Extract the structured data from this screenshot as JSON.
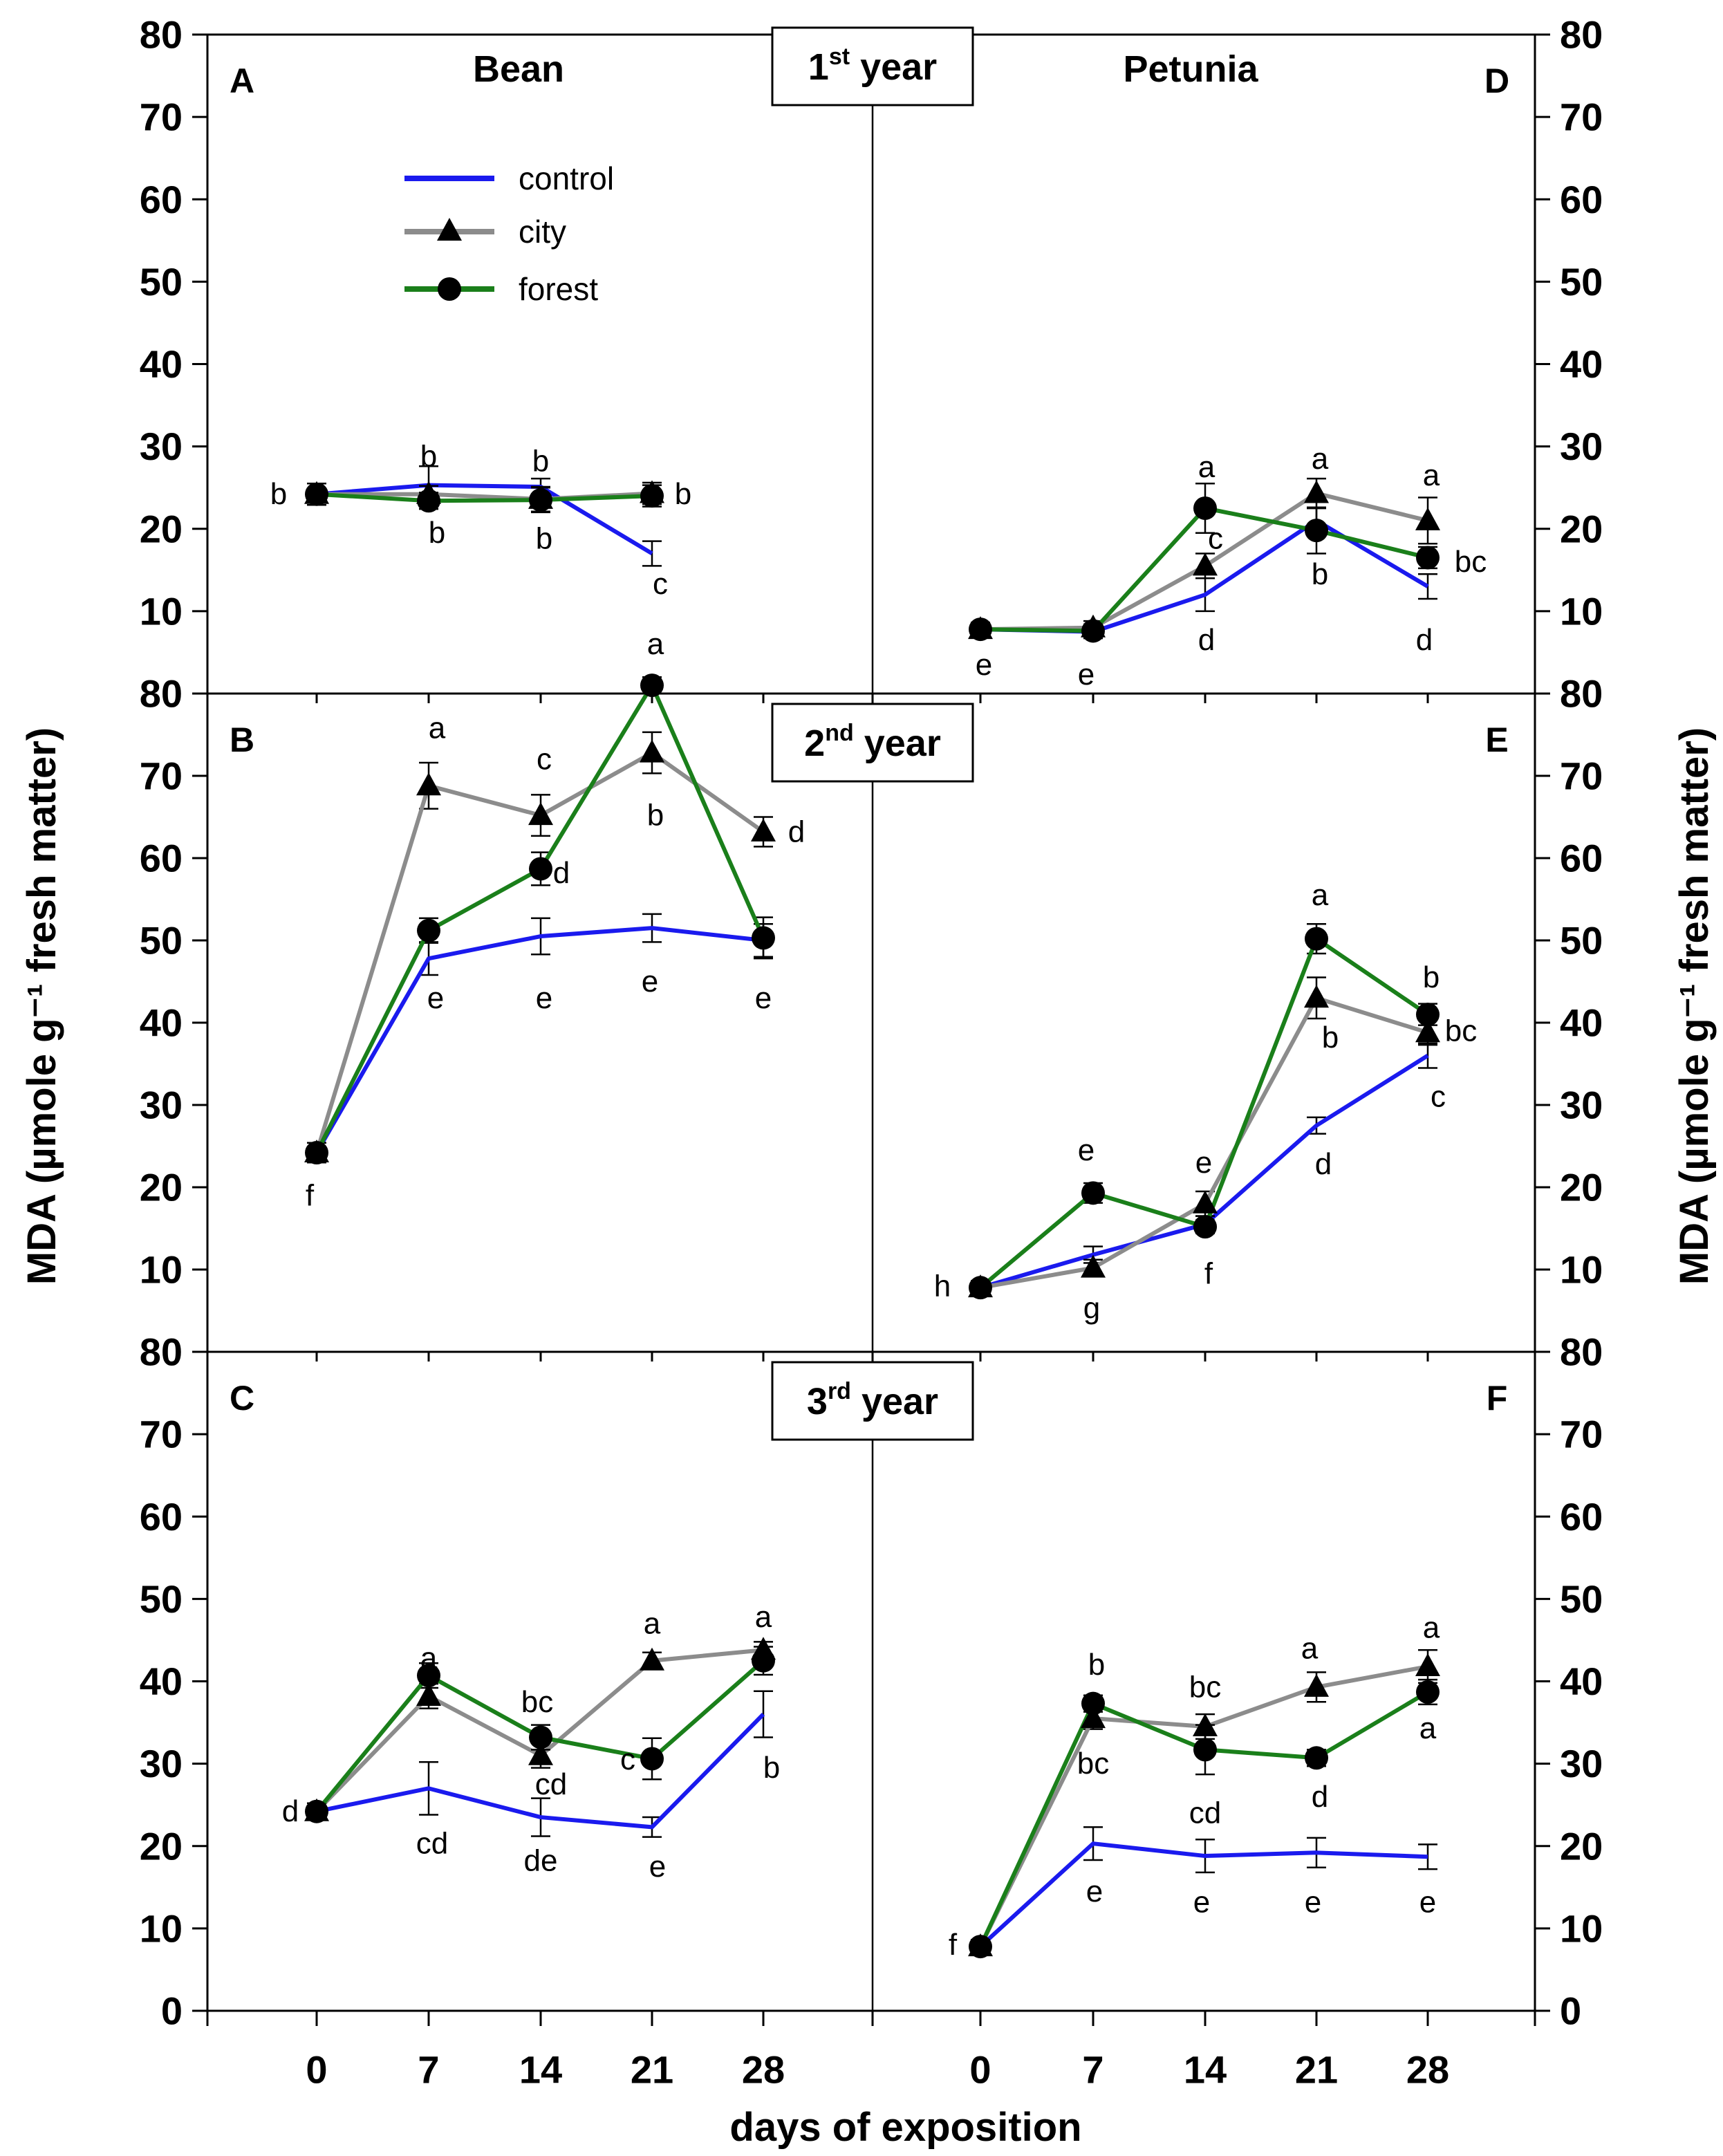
{
  "chart_data": {
    "type": "line",
    "x": [
      0,
      7,
      14,
      21,
      28
    ],
    "xticks": [
      "0",
      "7",
      "14",
      "21",
      "28"
    ],
    "yticks": [
      "0",
      "10",
      "20",
      "30",
      "40",
      "50",
      "60",
      "70",
      "80"
    ],
    "ylim": [
      0,
      80
    ],
    "xlabel": "days of exposition",
    "ylabel_left": "MDA (µmole g⁻¹ fresh matter)",
    "ylabel_right": "MDA (µmole g⁻¹ fresh matter)",
    "columns": [
      "Bean",
      "Petunia"
    ],
    "years": [
      {
        "ord": "1",
        "sup": "st",
        "word": "year"
      },
      {
        "ord": "2",
        "sup": "nd",
        "word": "year"
      },
      {
        "ord": "3",
        "sup": "rd",
        "word": "year"
      }
    ],
    "legend": [
      {
        "name": "control",
        "color": "#1a1aee",
        "marker": "none"
      },
      {
        "name": "city",
        "color": "#8c8c8c",
        "marker": "triangle"
      },
      {
        "name": "forest",
        "color": "#1a7f1a",
        "marker": "circle"
      }
    ],
    "panels": [
      {
        "id": "A",
        "plant": "Bean",
        "year": 1,
        "series": [
          {
            "name": "control",
            "values": [
              24.2,
              25.3,
              25.1,
              17.0
            ],
            "err": [
              1.3,
              2.3,
              1.0,
              1.5
            ]
          },
          {
            "name": "city",
            "values": [
              24.2,
              24.2,
              23.6,
              24.3
            ],
            "err": [
              1.3,
              1.0,
              1.5,
              1.3
            ]
          },
          {
            "name": "forest",
            "values": [
              24.2,
              23.4,
              23.5,
              24.0
            ],
            "err": [
              1.3,
              1.0,
              1.5,
              1.3
            ]
          }
        ],
        "labels": [
          {
            "text": "b",
            "x": 0,
            "y": 24.2,
            "dx": -55,
            "dy": 0
          },
          {
            "text": "b",
            "x": 7,
            "y": 28.8,
            "dx": 0,
            "dy": 0
          },
          {
            "text": "b",
            "x": 7,
            "y": 19.5,
            "dx": 12,
            "dy": 0
          },
          {
            "text": "b",
            "x": 14,
            "y": 28.2,
            "dx": 0,
            "dy": 0
          },
          {
            "text": "b",
            "x": 14,
            "y": 18.8,
            "dx": 5,
            "dy": 0
          },
          {
            "text": "b",
            "x": 21,
            "y": 24.2,
            "dx": 45,
            "dy": 0
          },
          {
            "text": "c",
            "x": 21,
            "y": 13.3,
            "dx": 12,
            "dy": 0
          }
        ]
      },
      {
        "id": "B",
        "plant": "Bean",
        "year": 2,
        "series": [
          {
            "name": "control",
            "values": [
              24.2,
              47.8,
              50.5,
              51.5,
              50.0
            ],
            "err": [
              1.2,
              2.0,
              2.2,
              1.7,
              2.0
            ]
          },
          {
            "name": "city",
            "values": [
              24.2,
              68.8,
              65.2,
              72.8,
              63.2
            ],
            "err": [
              1.2,
              2.8,
              2.5,
              2.5,
              1.8
            ]
          },
          {
            "name": "forest",
            "values": [
              24.2,
              51.2,
              58.7,
              81.0,
              50.3
            ],
            "err": [
              1.2,
              1.5,
              2.0,
              1.0,
              2.5
            ]
          }
        ],
        "labels": [
          {
            "text": "f",
            "x": 0,
            "y": 19.0,
            "dx": -10,
            "dy": 0
          },
          {
            "text": "a",
            "x": 7,
            "y": 75.8,
            "dx": 12,
            "dy": 0
          },
          {
            "text": "e",
            "x": 7,
            "y": 43.0,
            "dx": 10,
            "dy": 0
          },
          {
            "text": "c",
            "x": 14,
            "y": 72.0,
            "dx": 5,
            "dy": 0
          },
          {
            "text": "d",
            "x": 14,
            "y": 58.2,
            "dx": 30,
            "dy": 0
          },
          {
            "text": "e",
            "x": 14,
            "y": 43.0,
            "dx": 5,
            "dy": 0
          },
          {
            "text": "a",
            "x": 21,
            "y": 86.0,
            "dx": 5,
            "dy": 0
          },
          {
            "text": "b",
            "x": 21,
            "y": 65.2,
            "dx": 5,
            "dy": 0
          },
          {
            "text": "e",
            "x": 21,
            "y": 45.0,
            "dx": -3,
            "dy": 0
          },
          {
            "text": "d",
            "x": 28,
            "y": 63.2,
            "dx": 48,
            "dy": 0
          },
          {
            "text": "e",
            "x": 28,
            "y": 43.0,
            "dx": 0,
            "dy": 0
          }
        ]
      },
      {
        "id": "C",
        "plant": "Bean",
        "year": 3,
        "series": [
          {
            "name": "control",
            "values": [
              24.2,
              27.0,
              23.5,
              22.3,
              36.0
            ],
            "err": [
              1.0,
              3.2,
              2.3,
              1.2,
              2.8
            ]
          },
          {
            "name": "city",
            "values": [
              24.2,
              38.2,
              31.0,
              42.5,
              43.8
            ],
            "err": [
              1.0,
              1.5,
              1.5,
              1.0,
              1.0
            ]
          },
          {
            "name": "forest",
            "values": [
              24.2,
              40.7,
              33.2,
              30.6,
              42.5
            ],
            "err": [
              1.0,
              1.5,
              1.5,
              2.5,
              1.7
            ]
          }
        ],
        "labels": [
          {
            "text": "d",
            "x": 0,
            "y": 24.2,
            "dx": -38,
            "dy": 0
          },
          {
            "text": "a",
            "x": 7,
            "y": 42.8,
            "dx": 0,
            "dy": 0
          },
          {
            "text": "cd",
            "x": 7,
            "y": 20.3,
            "dx": 5,
            "dy": 0
          },
          {
            "text": "bc",
            "x": 14,
            "y": 37.5,
            "dx": -5,
            "dy": 0
          },
          {
            "text": "cd",
            "x": 14,
            "y": 27.5,
            "dx": 15,
            "dy": 0
          },
          {
            "text": "de",
            "x": 14,
            "y": 18.2,
            "dx": 0,
            "dy": 0
          },
          {
            "text": "a",
            "x": 21,
            "y": 47.0,
            "dx": 0,
            "dy": 0
          },
          {
            "text": "c",
            "x": 21,
            "y": 30.5,
            "dx": -35,
            "dy": 0
          },
          {
            "text": "e",
            "x": 21,
            "y": 17.5,
            "dx": 8,
            "dy": 0
          },
          {
            "text": "a",
            "x": 28,
            "y": 47.8,
            "dx": 0,
            "dy": 0
          },
          {
            "text": "b",
            "x": 28,
            "y": 29.5,
            "dx": 12,
            "dy": 0
          }
        ]
      },
      {
        "id": "D",
        "plant": "Petunia",
        "year": 1,
        "series": [
          {
            "name": "control",
            "values": [
              7.8,
              7.5,
              12.0,
              21.0,
              13.0
            ],
            "err": [
              0.8,
              0.8,
              2.0,
              1.5,
              1.5
            ]
          },
          {
            "name": "city",
            "values": [
              7.8,
              8.0,
              15.5,
              24.3,
              21.0
            ],
            "err": [
              0.8,
              0.8,
              1.5,
              1.8,
              2.8
            ]
          },
          {
            "name": "forest",
            "values": [
              7.8,
              7.6,
              22.5,
              19.8,
              16.5
            ],
            "err": [
              0.8,
              0.8,
              3.0,
              2.8,
              1.3
            ]
          }
        ],
        "labels": [
          {
            "text": "e",
            "x": 0,
            "y": 3.5,
            "dx": 5,
            "dy": 0
          },
          {
            "text": "e",
            "x": 7,
            "y": 2.3,
            "dx": -10,
            "dy": 0
          },
          {
            "text": "a",
            "x": 14,
            "y": 27.5,
            "dx": 2,
            "dy": 0
          },
          {
            "text": "c",
            "x": 14,
            "y": 18.8,
            "dx": 15,
            "dy": 0
          },
          {
            "text": "d",
            "x": 14,
            "y": 6.5,
            "dx": 2,
            "dy": 0
          },
          {
            "text": "a",
            "x": 21,
            "y": 28.5,
            "dx": 5,
            "dy": 0
          },
          {
            "text": "b",
            "x": 21,
            "y": 14.5,
            "dx": 5,
            "dy": 0
          },
          {
            "text": "a",
            "x": 28,
            "y": 26.5,
            "dx": 5,
            "dy": 0
          },
          {
            "text": "bc",
            "x": 28,
            "y": 16.0,
            "dx": 62,
            "dy": 0
          },
          {
            "text": "d",
            "x": 28,
            "y": 6.5,
            "dx": -5,
            "dy": 0
          }
        ]
      },
      {
        "id": "E",
        "plant": "Petunia",
        "year": 2,
        "series": [
          {
            "name": "control",
            "values": [
              7.8,
              11.8,
              15.5,
              27.5,
              36.0
            ],
            "err": [
              0.8,
              1.0,
              1.0,
              1.0,
              1.5
            ]
          },
          {
            "name": "city",
            "values": [
              7.8,
              10.2,
              18.0,
              43.0,
              38.8
            ],
            "err": [
              0.8,
              1.0,
              1.5,
              2.5,
              1.5
            ]
          },
          {
            "name": "forest",
            "values": [
              7.8,
              19.3,
              15.2,
              50.2,
              41.0
            ],
            "err": [
              0.8,
              1.2,
              0.8,
              1.8,
              1.3
            ]
          }
        ],
        "labels": [
          {
            "text": "h",
            "x": 0,
            "y": 8.0,
            "dx": -55,
            "dy": 0
          },
          {
            "text": "e",
            "x": 7,
            "y": 24.5,
            "dx": -10,
            "dy": 0
          },
          {
            "text": "g",
            "x": 7,
            "y": 5.3,
            "dx": -2,
            "dy": 0
          },
          {
            "text": "e",
            "x": 14,
            "y": 23.0,
            "dx": -2,
            "dy": 0
          },
          {
            "text": "f",
            "x": 14,
            "y": 9.5,
            "dx": 5,
            "dy": 0
          },
          {
            "text": "a",
            "x": 21,
            "y": 55.5,
            "dx": 5,
            "dy": 0
          },
          {
            "text": "b",
            "x": 21,
            "y": 38.2,
            "dx": 20,
            "dy": 0
          },
          {
            "text": "d",
            "x": 21,
            "y": 22.8,
            "dx": 10,
            "dy": 0
          },
          {
            "text": "b",
            "x": 28,
            "y": 45.5,
            "dx": 5,
            "dy": 0
          },
          {
            "text": "bc",
            "x": 28,
            "y": 39.0,
            "dx": 48,
            "dy": 0
          },
          {
            "text": "c",
            "x": 28,
            "y": 31.0,
            "dx": 15,
            "dy": 0
          }
        ]
      },
      {
        "id": "F",
        "plant": "Petunia",
        "year": 3,
        "series": [
          {
            "name": "control",
            "values": [
              7.8,
              20.3,
              18.8,
              19.2,
              18.7
            ],
            "err": [
              0.8,
              2.0,
              2.0,
              1.8,
              1.5
            ]
          },
          {
            "name": "city",
            "values": [
              7.8,
              35.5,
              34.5,
              39.3,
              41.8
            ],
            "err": [
              0.8,
              1.3,
              1.5,
              1.8,
              2.0
            ]
          },
          {
            "name": "forest",
            "values": [
              7.8,
              37.3,
              31.7,
              30.7,
              38.7
            ],
            "err": [
              0.8,
              1.0,
              3.0,
              1.0,
              1.5
            ]
          }
        ],
        "labels": [
          {
            "text": "f",
            "x": 0,
            "y": 8.0,
            "dx": -40,
            "dy": 0
          },
          {
            "text": "b",
            "x": 7,
            "y": 42.0,
            "dx": 5,
            "dy": 0
          },
          {
            "text": "bc",
            "x": 7,
            "y": 30.0,
            "dx": 0,
            "dy": 0
          },
          {
            "text": "e",
            "x": 7,
            "y": 14.5,
            "dx": 2,
            "dy": 0
          },
          {
            "text": "bc",
            "x": 14,
            "y": 39.3,
            "dx": 0,
            "dy": 0
          },
          {
            "text": "cd",
            "x": 14,
            "y": 24.0,
            "dx": 0,
            "dy": 0
          },
          {
            "text": "e",
            "x": 14,
            "y": 13.2,
            "dx": -5,
            "dy": 0
          },
          {
            "text": "a",
            "x": 21,
            "y": 44.0,
            "dx": -10,
            "dy": 0
          },
          {
            "text": "d",
            "x": 21,
            "y": 26.0,
            "dx": 5,
            "dy": 0
          },
          {
            "text": "e",
            "x": 21,
            "y": 13.2,
            "dx": -5,
            "dy": 0
          },
          {
            "text": "a",
            "x": 28,
            "y": 46.5,
            "dx": 5,
            "dy": 0
          },
          {
            "text": "a",
            "x": 28,
            "y": 34.3,
            "dx": 0,
            "dy": 0
          },
          {
            "text": "e",
            "x": 28,
            "y": 13.2,
            "dx": 0,
            "dy": 0
          }
        ]
      }
    ]
  }
}
